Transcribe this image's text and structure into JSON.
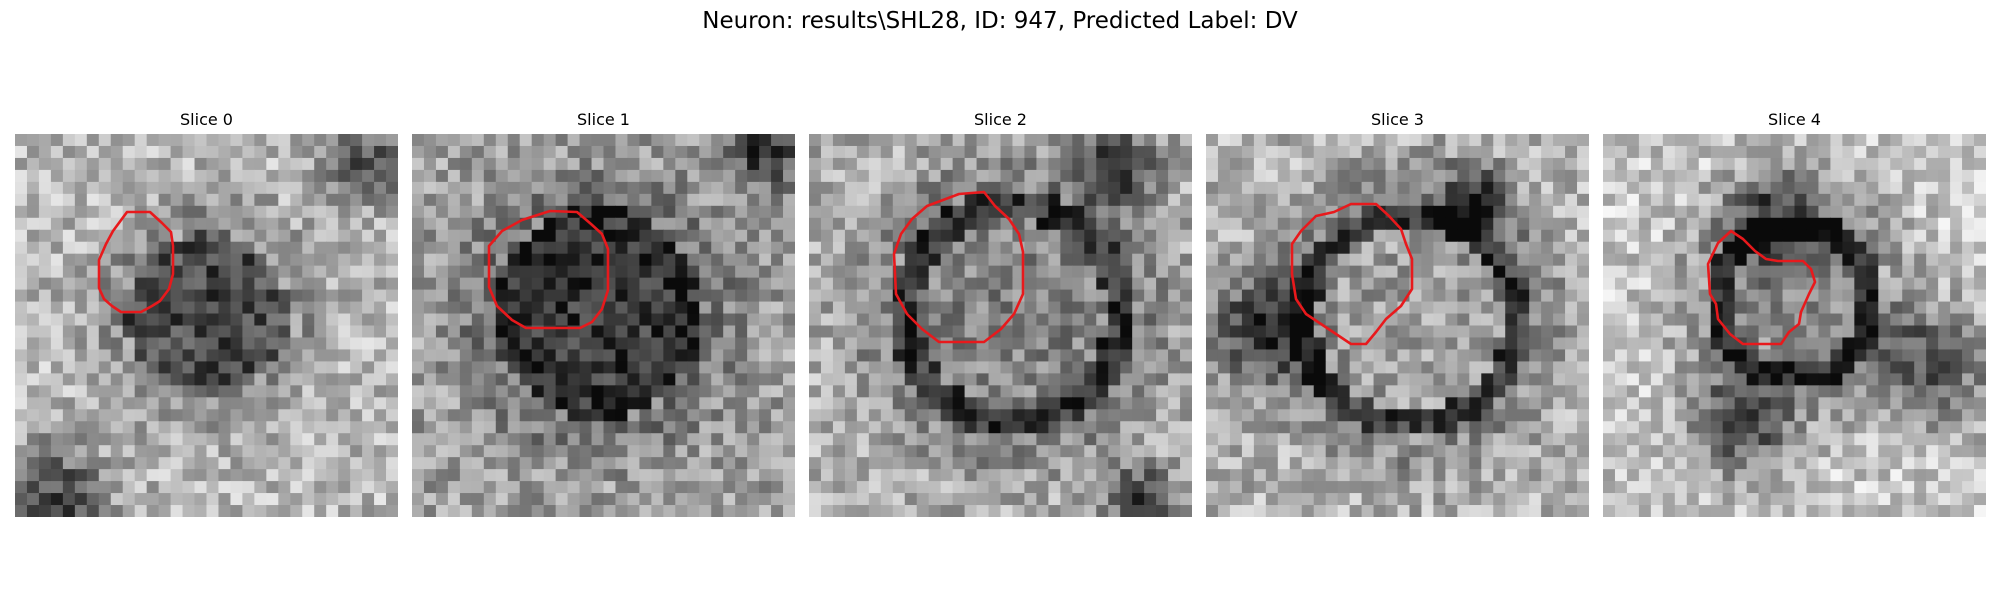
{
  "figure": {
    "title": "Neuron: results\\SHL28, ID: 947, Predicted Label: DV",
    "contour_color": "#e8191c"
  },
  "panels": [
    {
      "title": "Slice 0",
      "region": "small dark oval nucleus at center-left, lighter surround"
    },
    {
      "title": "Slice 1",
      "region": "large dark round nucleus filling center"
    },
    {
      "title": "Slice 2",
      "region": "large round mid-gray nucleus with darker rim"
    },
    {
      "title": "Slice 3",
      "region": "octagonal mid-gray nucleus with dark surround"
    },
    {
      "title": "Slice 4",
      "region": "small irregular nucleus, dark surrounding membranes"
    }
  ]
}
